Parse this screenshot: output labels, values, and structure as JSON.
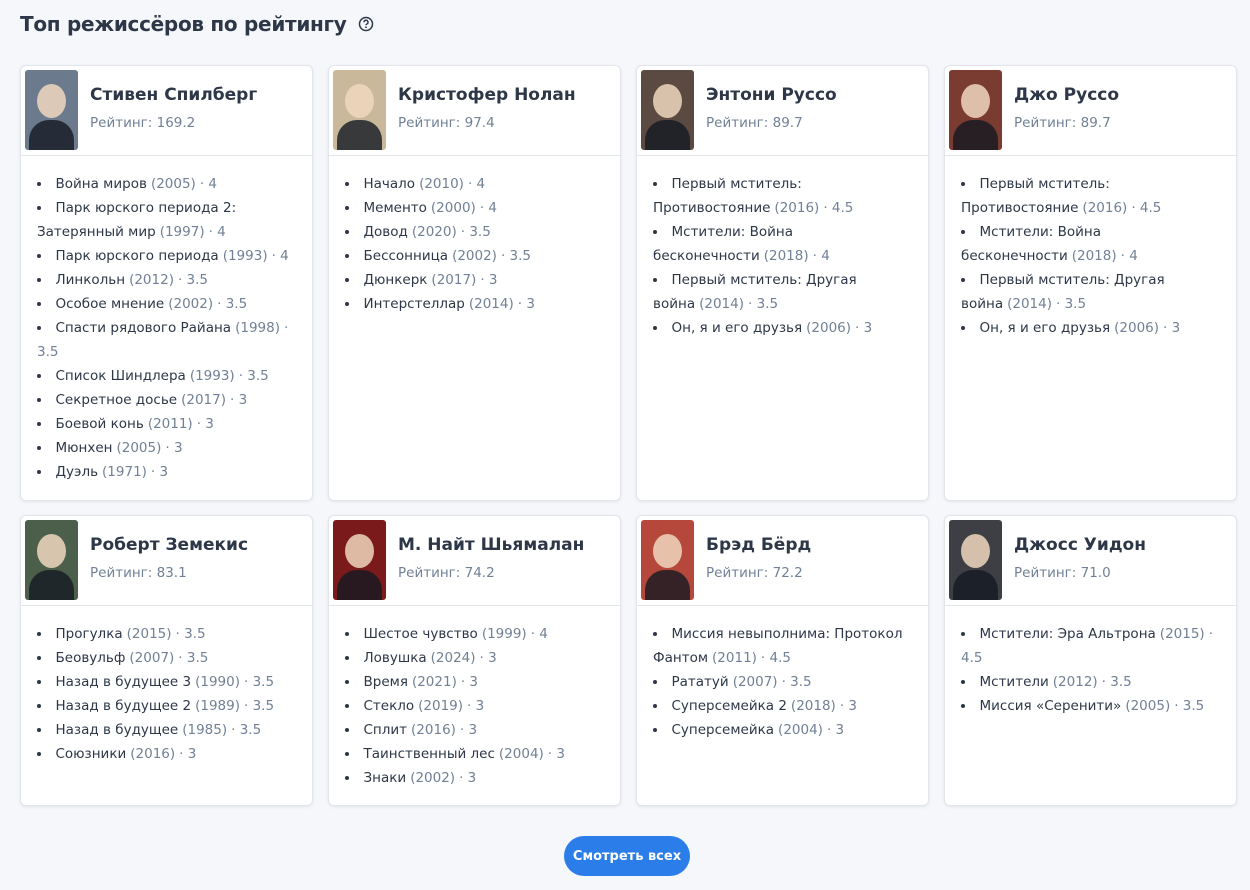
{
  "header": {
    "title": "Топ режиссёров по рейтингу"
  },
  "directors": [
    {
      "name": "Стивен Спилберг",
      "rating": "Рейтинг: 169.2",
      "photo": "#6b7a8c",
      "films": [
        [
          "Война миров",
          "(2005)",
          "· 4"
        ],
        [
          "Парк юрского периода 2: Затерянный мир",
          "(1997)",
          "· 4"
        ],
        [
          "Парк юрского периода",
          "(1993)",
          "· 4"
        ],
        [
          "Линкольн",
          "(2012)",
          "· 3.5"
        ],
        [
          "Особое мнение",
          "(2002)",
          "· 3.5"
        ],
        [
          "Спасти рядового Райана",
          "(1998)",
          "· 3.5"
        ],
        [
          "Список Шиндлера",
          "(1993)",
          "· 3.5"
        ],
        [
          "Секретное досье",
          "(2017)",
          "· 3"
        ],
        [
          "Боевой конь",
          "(2011)",
          "· 3"
        ],
        [
          "Мюнхен",
          "(2005)",
          "· 3"
        ],
        [
          "Дуэль",
          "(1971)",
          "· 3"
        ]
      ]
    },
    {
      "name": "Кристофер Нолан",
      "rating": "Рейтинг: 97.4",
      "photo": "#c9b99a",
      "films": [
        [
          "Начало",
          "(2010)",
          "· 4"
        ],
        [
          "Мементо",
          "(2000)",
          "· 4"
        ],
        [
          "Довод",
          "(2020)",
          "· 3.5"
        ],
        [
          "Бессонница",
          "(2002)",
          "· 3.5"
        ],
        [
          "Дюнкерк",
          "(2017)",
          "· 3"
        ],
        [
          "Интерстеллар",
          "(2014)",
          "· 3"
        ]
      ]
    },
    {
      "name": "Энтони Руссо",
      "rating": "Рейтинг: 89.7",
      "photo": "#5a4a42",
      "films": [
        [
          "Первый мститель: Противостояние",
          "(2016)",
          "· 4.5"
        ],
        [
          "Мстители: Война бесконечности",
          "(2018)",
          "· 4"
        ],
        [
          "Первый мститель: Другая война",
          "(2014)",
          "· 3.5"
        ],
        [
          "Он, я и его друзья",
          "(2006)",
          "· 3"
        ]
      ]
    },
    {
      "name": "Джо Руссо",
      "rating": "Рейтинг: 89.7",
      "photo": "#7a3b30",
      "films": [
        [
          "Первый мститель: Противостояние",
          "(2016)",
          "· 4.5"
        ],
        [
          "Мстители: Война бесконечности",
          "(2018)",
          "· 4"
        ],
        [
          "Первый мститель: Другая война",
          "(2014)",
          "· 3.5"
        ],
        [
          "Он, я и его друзья",
          "(2006)",
          "· 3"
        ]
      ]
    },
    {
      "name": "Роберт Земекис",
      "rating": "Рейтинг: 83.1",
      "photo": "#4c5f4a",
      "films": [
        [
          "Прогулка",
          "(2015)",
          "· 3.5"
        ],
        [
          "Беовульф",
          "(2007)",
          "· 3.5"
        ],
        [
          "Назад в будущее 3",
          "(1990)",
          "· 3.5"
        ],
        [
          "Назад в будущее 2",
          "(1989)",
          "· 3.5"
        ],
        [
          "Назад в будущее",
          "(1985)",
          "· 3.5"
        ],
        [
          "Союзники",
          "(2016)",
          "· 3"
        ]
      ]
    },
    {
      "name": "М. Найт Шьямалан",
      "rating": "Рейтинг: 74.2",
      "photo": "#7a1a1a",
      "films": [
        [
          "Шестое чувство",
          "(1999)",
          "· 4"
        ],
        [
          "Ловушка",
          "(2024)",
          "· 3"
        ],
        [
          "Время",
          "(2021)",
          "· 3"
        ],
        [
          "Стекло",
          "(2019)",
          "· 3"
        ],
        [
          "Сплит",
          "(2016)",
          "· 3"
        ],
        [
          "Таинственный лес",
          "(2004)",
          "· 3"
        ],
        [
          "Знаки",
          "(2002)",
          "· 3"
        ]
      ]
    },
    {
      "name": "Брэд Бёрд",
      "rating": "Рейтинг: 72.2",
      "photo": "#b5483a",
      "films": [
        [
          "Миссия невыполнима: Протокол Фантом",
          "(2011)",
          "· 4.5"
        ],
        [
          "Рататуй",
          "(2007)",
          "· 3.5"
        ],
        [
          "Суперсемейка 2",
          "(2018)",
          "· 3"
        ],
        [
          "Суперсемейка",
          "(2004)",
          "· 3"
        ]
      ]
    },
    {
      "name": "Джосс Уидон",
      "rating": "Рейтинг: 71.0",
      "photo": "#3d3f44",
      "films": [
        [
          "Мстители: Эра Альтрона",
          "(2015)",
          "· 4.5"
        ],
        [
          "Мстители",
          "(2012)",
          "· 3.5"
        ],
        [
          "Миссия «Серенити»",
          "(2005)",
          "· 3.5"
        ]
      ]
    }
  ],
  "button": {
    "label": "Смотреть всех"
  }
}
